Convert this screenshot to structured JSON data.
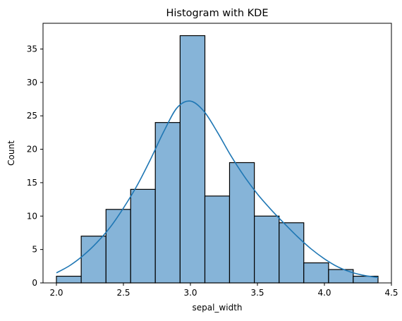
{
  "chart_data": {
    "type": "bar",
    "title": "Histogram with KDE",
    "xlabel": "sepal_width",
    "ylabel": "Count",
    "xlim": [
      1.9,
      4.5
    ],
    "ylim": [
      0,
      38.85
    ],
    "xticks": [
      2.0,
      2.5,
      3.0,
      3.5,
      4.0,
      4.5
    ],
    "xtick_labels": [
      "2.0",
      "2.5",
      "3.0",
      "3.5",
      "4.0",
      "4.5"
    ],
    "yticks": [
      0,
      5,
      10,
      15,
      20,
      25,
      30,
      35
    ],
    "ytick_labels": [
      "0",
      "5",
      "10",
      "15",
      "20",
      "25",
      "30",
      "35"
    ],
    "bins": [
      {
        "x0": 2.0,
        "x1": 2.185,
        "count": 1
      },
      {
        "x0": 2.185,
        "x1": 2.37,
        "count": 7
      },
      {
        "x0": 2.37,
        "x1": 2.554,
        "count": 11
      },
      {
        "x0": 2.554,
        "x1": 2.738,
        "count": 14
      },
      {
        "x0": 2.738,
        "x1": 2.923,
        "count": 24
      },
      {
        "x0": 2.923,
        "x1": 3.108,
        "count": 37
      },
      {
        "x0": 3.108,
        "x1": 3.292,
        "count": 13
      },
      {
        "x0": 3.292,
        "x1": 3.477,
        "count": 18
      },
      {
        "x0": 3.477,
        "x1": 3.662,
        "count": 10
      },
      {
        "x0": 3.662,
        "x1": 3.846,
        "count": 9
      },
      {
        "x0": 3.846,
        "x1": 4.031,
        "count": 3
      },
      {
        "x0": 4.031,
        "x1": 4.215,
        "count": 2
      },
      {
        "x0": 4.215,
        "x1": 4.4,
        "count": 1
      }
    ],
    "kde": {
      "x": [
        2.0,
        2.1,
        2.2,
        2.3,
        2.4,
        2.5,
        2.6,
        2.7,
        2.8,
        2.9,
        3.0,
        3.1,
        3.2,
        3.3,
        3.4,
        3.5,
        3.6,
        3.7,
        3.8,
        3.9,
        4.0,
        4.1,
        4.2,
        4.3,
        4.4
      ],
      "y": [
        1.5,
        2.6,
        4.1,
        6.0,
        8.3,
        11.2,
        14.5,
        18.4,
        22.6,
        26.2,
        27.2,
        25.7,
        22.6,
        19.1,
        16.0,
        13.3,
        11.0,
        8.9,
        6.9,
        5.1,
        3.6,
        2.4,
        1.6,
        1.1,
        0.8
      ]
    },
    "grid": false,
    "colors": {
      "bar_fill": "#86b4d8",
      "bar_edge": "#000000",
      "kde_line": "#1f77b4",
      "axes": "#000000"
    }
  }
}
